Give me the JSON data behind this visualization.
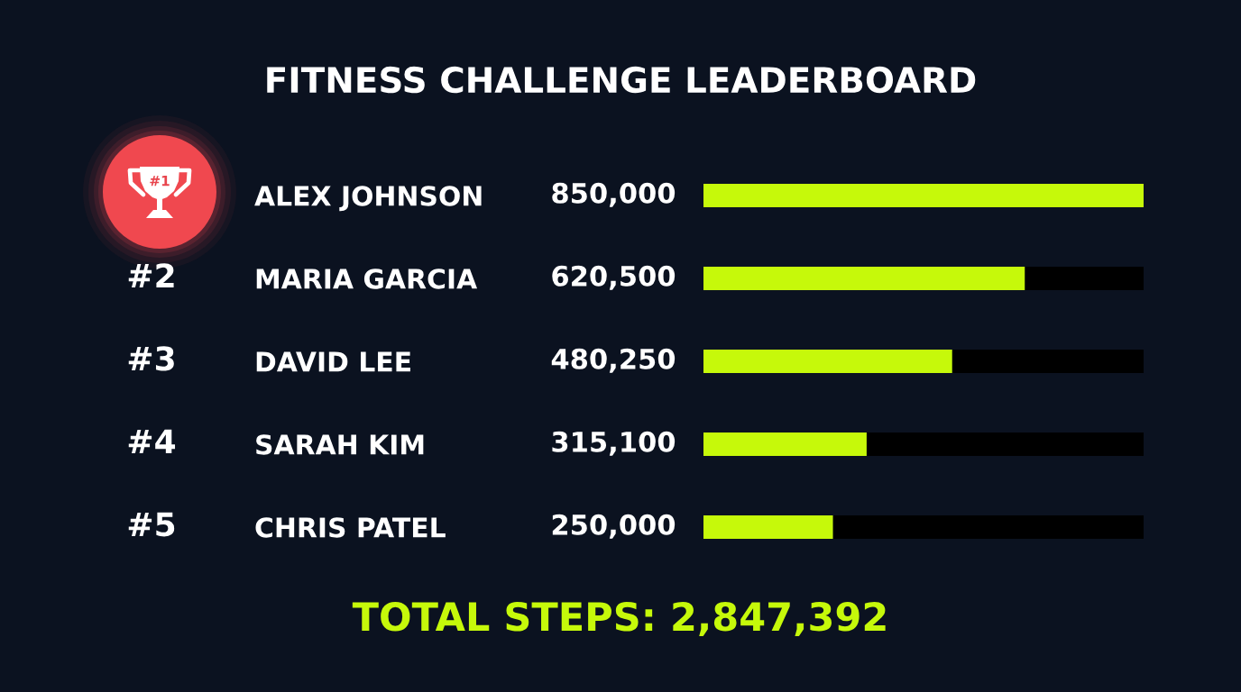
{
  "chart_data": {
    "type": "bar",
    "orientation": "horizontal",
    "title": "FITNESS CHALLENGE LEADERBOARD",
    "categories": [
      "ALEX JOHNSON",
      "MARIA GARCIA",
      "DAVID LEE",
      "SARAH KIM",
      "CHRIS PATEL"
    ],
    "values": [
      850000,
      620500,
      480250,
      315100,
      250000
    ],
    "value_labels": [
      "850,000",
      "620,500",
      "480,250",
      "315,100",
      "250,000"
    ],
    "color": "#c6f90a",
    "tick_labels": "y",
    "annotations": [
      "#1",
      "#2",
      "#3",
      "#4",
      "#5",
      "TOTAL STEPS: 2,847,392"
    ]
  }
}
